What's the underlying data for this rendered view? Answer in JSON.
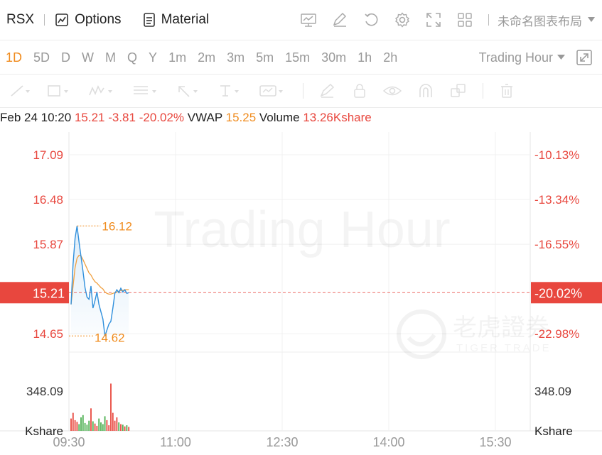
{
  "header": {
    "symbol": "RSX",
    "options_label": "Options",
    "material_label": "Material",
    "workspace_name": "未命名图表布局"
  },
  "periods": {
    "items": [
      "1D",
      "5D",
      "D",
      "W",
      "M",
      "Q",
      "Y",
      "1m",
      "2m",
      "3m",
      "5m",
      "15m",
      "30m",
      "1h",
      "2h"
    ],
    "active": "1D",
    "session_select": "Trading Hour"
  },
  "info_bar": {
    "datetime": "Feb 24 10:20",
    "price": "15.21",
    "change": "-3.81",
    "change_pct": "-20.02%",
    "vwap_label": "VWAP",
    "vwap_value": "15.25",
    "volume_label": "Volume",
    "volume_value": "13.26Kshare"
  },
  "watermark": {
    "session": "Trading Hour",
    "brand_cn": "老虎證券",
    "brand_en": "TIGER TRADE"
  },
  "colors": {
    "up": "#e8473e",
    "down": "#4caf50",
    "price_line": "#2f8fdc",
    "vwap_line": "#f0a040",
    "accent": "#f08c1f"
  },
  "chart_data": {
    "type": "line",
    "x_ticks": [
      "09:30",
      "11:00",
      "12:30",
      "14:00",
      "15:30"
    ],
    "price_ticks": [
      "17.09",
      "16.48",
      "15.87",
      "14.65"
    ],
    "pct_ticks": [
      "-10.13%",
      "-13.34%",
      "-16.55%",
      "-22.98%"
    ],
    "current_price_tag": "15.21",
    "current_pct_tag": "-20.02%",
    "high_label": "16.12",
    "low_label": "14.62",
    "volume_tick": "348.09",
    "volume_unit": "Kshare",
    "ylim": [
      14.4,
      17.4
    ],
    "current_price": 15.21,
    "high": 16.12,
    "low": 14.62,
    "price": [
      15.05,
      15.6,
      15.95,
      16.12,
      15.9,
      15.7,
      15.5,
      15.28,
      15.15,
      15.12,
      15.3,
      15.0,
      15.1,
      15.22,
      15.05,
      14.95,
      14.85,
      14.62,
      14.7,
      14.78,
      14.82,
      15.0,
      15.2,
      15.25,
      15.21,
      15.27,
      15.22,
      15.25,
      15.2,
      15.21
    ],
    "vwap": [
      15.05,
      15.3,
      15.55,
      15.68,
      15.72,
      15.71,
      15.66,
      15.6,
      15.54,
      15.48,
      15.45,
      15.4,
      15.36,
      15.34,
      15.31,
      15.28,
      15.26,
      15.22,
      15.2,
      15.19,
      15.19,
      15.2,
      15.21,
      15.22,
      15.23,
      15.24,
      15.24,
      15.25,
      15.25,
      15.25
    ],
    "volume": [
      110,
      160,
      95,
      80,
      60,
      120,
      140,
      70,
      55,
      90,
      200,
      85,
      65,
      45,
      110,
      75,
      60,
      130,
      95,
      50,
      420,
      160,
      90,
      120,
      75,
      60,
      55,
      40,
      50,
      35
    ],
    "volume_max": 700
  }
}
